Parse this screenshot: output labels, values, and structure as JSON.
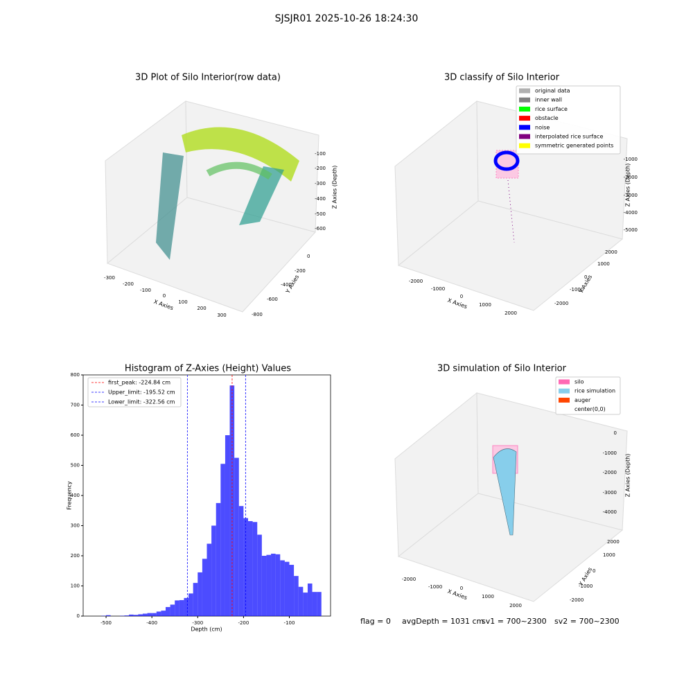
{
  "suptitle": "SJSJR01 2025-10-26 18:24:30",
  "chart_data": {
    "type": "histogram",
    "title": "Histogram of Z-Axies (Height) Values",
    "xlabel": "Depth (cm)",
    "ylabel": "Frequency",
    "color": "#0000ff",
    "bins": [
      -510,
      -500,
      -490,
      -480,
      -470,
      -460,
      -450,
      -440,
      -430,
      -420,
      -410,
      -400,
      -390,
      -380,
      -370,
      -360,
      -350,
      -340,
      -330,
      -320,
      -310,
      -300,
      -290,
      -280,
      -270,
      -260,
      -250,
      -240,
      -230,
      -220,
      -210,
      -200,
      -190,
      -180,
      -170,
      -160,
      -150,
      -140,
      -130,
      -120,
      -110,
      -100,
      -90,
      -80,
      -70,
      -60,
      -50,
      -40,
      -30
    ],
    "values": [
      1,
      3,
      0,
      0,
      1,
      2,
      5,
      4,
      6,
      8,
      10,
      10,
      15,
      18,
      30,
      38,
      52,
      53,
      60,
      75,
      110,
      145,
      190,
      240,
      300,
      375,
      505,
      600,
      765,
      525,
      365,
      325,
      315,
      312,
      270,
      200,
      203,
      207,
      205,
      185,
      180,
      170,
      133,
      97,
      78,
      108,
      80,
      80
    ],
    "xlim": [
      -550,
      -10
    ],
    "ylim": [
      0,
      800
    ],
    "xticks": [
      -500,
      -400,
      -300,
      -200,
      -100
    ],
    "yticks": [
      0,
      100,
      200,
      300,
      400,
      500,
      600,
      700,
      800
    ],
    "lines": [
      {
        "label": "first_peak: -224.84 cm",
        "value": -224.84,
        "color": "#ff0000"
      },
      {
        "label": "Upper_limit: -195.52 cm",
        "value": -195.52,
        "color": "#0000ff"
      },
      {
        "label": "Lower_limit: -322.56 cm",
        "value": -322.56,
        "color": "#0000ff"
      }
    ],
    "legend": "upper left"
  },
  "panels": [
    {
      "title": "3D Plot of Silo Interior(row data)",
      "xlabel": "X Axies",
      "ylabel": "Y Axies",
      "zlabel": "Z Axies (Depth)",
      "xticks": [
        -300,
        -200,
        -100,
        0,
        100,
        200,
        300
      ],
      "yticks": [
        0,
        -200,
        -400,
        -600,
        -800
      ],
      "zticks": [
        -100,
        -200,
        -300,
        -400,
        -500,
        -600
      ]
    },
    {
      "title": "3D classify of Silo Interior",
      "xlabel": "X Axies",
      "ylabel": "Y Axies",
      "zlabel": "Z Axies (Depth)",
      "xticks": [
        -2000,
        -1000,
        0,
        1000,
        2000
      ],
      "yticks": [
        -2000,
        -1000,
        0,
        1000,
        2000
      ],
      "zticks": [
        -1000,
        -2000,
        -3000,
        -4000,
        -5000
      ],
      "legend": [
        {
          "name": "original data",
          "color": "#b0b0b0"
        },
        {
          "name": "inner wall",
          "color": "#808080"
        },
        {
          "name": "rice surface",
          "color": "#00ff00"
        },
        {
          "name": "obstacle",
          "color": "#ff0000"
        },
        {
          "name": "noise",
          "color": "#0000ff"
        },
        {
          "name": "interpolated rice surface",
          "color": "#800080"
        },
        {
          "name": "symmetric generated points",
          "color": "#ffff00"
        }
      ]
    },
    {
      "title": "3D simulation of Silo Interior",
      "xlabel": "X Axies",
      "ylabel": "Y Axies",
      "zlabel": "Z Axies (Depth)",
      "xticks": [
        -2000,
        -1000,
        0,
        1000,
        2000
      ],
      "yticks": [
        -2000,
        -1000,
        0,
        1000,
        2000
      ],
      "zticks": [
        0,
        -1000,
        -2000,
        -3000,
        -4000
      ],
      "legend": [
        {
          "name": "silo",
          "color": "#ff69b4"
        },
        {
          "name": "rice simulation",
          "color": "#87ceeb"
        },
        {
          "name": "auger",
          "color": "#ff4500"
        },
        {
          "name": "center(0,0)",
          "color": "#ffffff"
        }
      ]
    }
  ],
  "footer": [
    "flag = 0",
    "avgDepth = 1031 cm",
    "sv1 = 700~2300",
    "sv2 = 700~2300"
  ]
}
